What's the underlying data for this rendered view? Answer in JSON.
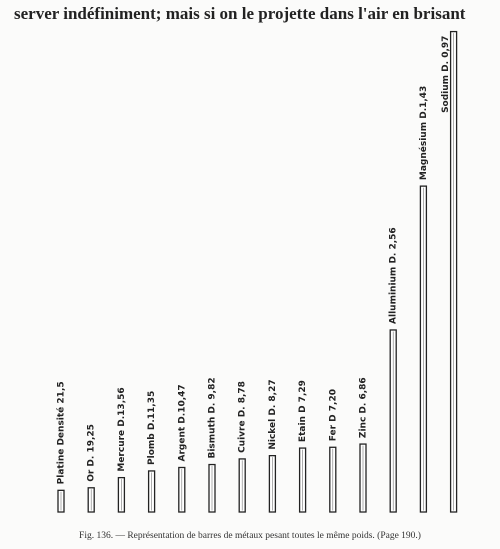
{
  "header": {
    "text": "server indéfiniment; mais si on le projette dans l'air en brisant"
  },
  "chart_data": {
    "type": "bar",
    "categories": [
      "Platine Densité 21,5",
      "Or D. 19,25",
      "Mercure D.13,56",
      "Plomb D.11,35",
      "Argent D.10,47",
      "Bismuth D. 9,82",
      "Cuivre D. 8,78",
      "Nickel D. 8,27",
      "Etain D 7,29",
      "Fer D 7,20",
      "Zinc D. 6,86",
      "Alluminium D. 2,56",
      "Magnésium D.1,43",
      "Sodium D. 0,97"
    ],
    "values": [
      21.5,
      19.25,
      13.56,
      11.35,
      10.47,
      9.82,
      8.78,
      8.27,
      7.29,
      7.2,
      6.86,
      2.56,
      1.43,
      0.97
    ],
    "color": "#ffffff"
  },
  "caption": {
    "text": "Fig. 136. — Représentation de barres de métaux pesant toutes le même poids. (Page 190.)"
  }
}
